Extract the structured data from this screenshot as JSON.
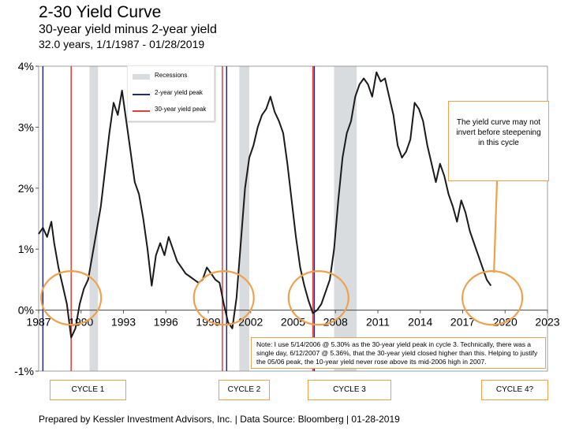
{
  "header": {
    "title": "2-30 Yield Curve",
    "subtitle": "30-year yield minus 2-year yield",
    "range": "32.0 years, 1/1/1987 - 01/28/2019"
  },
  "legend": {
    "recessions": "Recessions",
    "two_year_peak": "2-year yield peak",
    "thirty_year_peak": "30-year yield peak"
  },
  "callout": "The yield curve may not invert before steepening in this cycle",
  "note": "Note: I use 5/14/2006 @ 5.30% as the 30-year yield peak in cycle 3. Technically, there was a single day, 6/12/2007 @ 5.36%, that the 30-year yield closed higher than this. Helping to justify the 05/06 peak, the 10-year yield never rose above its mid-2006 high in 2007.",
  "cycles": [
    "CYCLE 1",
    "CYCLE 2",
    "CYCLE 3",
    "CYCLE 4?"
  ],
  "footer": "Prepared by Kessler Investment Advisors, Inc. | Data Source: Bloomberg | 01-28-2019",
  "colors": {
    "line": "#1a1a1a",
    "two_year": "#1f2a80",
    "thirty_year": "#e0403a",
    "recession": "#d9dcdf",
    "highlight": "#f0a04b"
  },
  "chart_data": {
    "type": "line",
    "title": "2-30 Yield Curve",
    "ylabel": "",
    "xlabel": "",
    "ylim": [
      -1,
      4
    ],
    "xlim": [
      1987,
      2023
    ],
    "y_ticks": [
      "-1%",
      "0%",
      "1%",
      "2%",
      "3%",
      "4%"
    ],
    "x_ticks": [
      "1987",
      "1990",
      "1993",
      "1996",
      "1999",
      "2002",
      "2005",
      "2008",
      "2011",
      "2014",
      "2017",
      "2020",
      "2023"
    ],
    "grid": false,
    "legend_position": "top-left",
    "recessions": [
      [
        1990.6,
        1991.2
      ],
      [
        2001.2,
        2001.9
      ],
      [
        2007.9,
        2009.5
      ]
    ],
    "two_year_peaks": [
      1987.3,
      2000.3,
      2006.5
    ],
    "thirty_year_peaks": [
      1989.3,
      2000.0,
      2006.4
    ],
    "cycle_circles": [
      {
        "label": "CYCLE 1",
        "center": [
          1989.3,
          0.2
        ]
      },
      {
        "label": "CYCLE 2",
        "center": [
          2000.1,
          0.2
        ]
      },
      {
        "label": "CYCLE 3",
        "center": [
          2006.8,
          0.2
        ]
      },
      {
        "label": "CYCLE 4?",
        "center": [
          2019.1,
          0.2
        ]
      }
    ],
    "series": [
      {
        "name": "30-year yield minus 2-year yield",
        "x": [
          1987.0,
          1987.3,
          1987.6,
          1987.9,
          1988.1,
          1988.4,
          1988.7,
          1989.0,
          1989.3,
          1989.6,
          1989.9,
          1990.2,
          1990.5,
          1990.8,
          1991.1,
          1991.4,
          1991.7,
          1992.0,
          1992.3,
          1992.6,
          1992.9,
          1993.2,
          1993.5,
          1993.8,
          1994.1,
          1994.4,
          1994.7,
          1995.0,
          1995.3,
          1995.6,
          1995.9,
          1996.2,
          1996.5,
          1996.8,
          1997.1,
          1997.4,
          1997.7,
          1998.0,
          1998.3,
          1998.6,
          1998.9,
          1999.2,
          1999.5,
          1999.8,
          2000.1,
          2000.4,
          2000.7,
          2001.0,
          2001.3,
          2001.6,
          2001.9,
          2002.2,
          2002.5,
          2002.8,
          2003.1,
          2003.4,
          2003.7,
          2004.0,
          2004.3,
          2004.6,
          2004.9,
          2005.2,
          2005.5,
          2005.8,
          2006.1,
          2006.4,
          2006.7,
          2007.0,
          2007.3,
          2007.6,
          2007.9,
          2008.2,
          2008.5,
          2008.8,
          2009.1,
          2009.4,
          2009.7,
          2010.0,
          2010.3,
          2010.6,
          2010.9,
          2011.2,
          2011.5,
          2011.8,
          2012.1,
          2012.4,
          2012.7,
          2013.0,
          2013.3,
          2013.6,
          2013.9,
          2014.2,
          2014.5,
          2014.8,
          2015.1,
          2015.4,
          2015.7,
          2016.0,
          2016.3,
          2016.6,
          2016.9,
          2017.2,
          2017.5,
          2017.8,
          2018.1,
          2018.4,
          2018.7,
          2019.0
        ],
        "y": [
          1.25,
          1.35,
          1.2,
          1.45,
          1.1,
          0.7,
          0.4,
          0.1,
          -0.45,
          -0.3,
          0.1,
          0.35,
          0.5,
          0.9,
          1.3,
          1.7,
          2.3,
          2.9,
          3.4,
          3.2,
          3.6,
          3.1,
          2.6,
          2.1,
          1.9,
          1.5,
          1.0,
          0.4,
          0.9,
          1.1,
          0.9,
          1.2,
          1.0,
          0.8,
          0.7,
          0.6,
          0.55,
          0.5,
          0.45,
          0.5,
          0.7,
          0.6,
          0.5,
          0.45,
          0.1,
          -0.2,
          -0.3,
          0.2,
          1.1,
          2.0,
          2.5,
          2.7,
          3.0,
          3.2,
          3.3,
          3.5,
          3.25,
          3.1,
          2.9,
          2.4,
          1.8,
          1.2,
          0.7,
          0.4,
          0.15,
          -0.05,
          0.0,
          0.1,
          0.3,
          0.5,
          1.0,
          1.8,
          2.5,
          2.9,
          3.1,
          3.5,
          3.7,
          3.8,
          3.7,
          3.5,
          3.9,
          3.75,
          3.8,
          3.5,
          3.2,
          2.7,
          2.5,
          2.6,
          2.8,
          3.4,
          3.3,
          3.1,
          2.7,
          2.4,
          2.1,
          2.4,
          2.2,
          1.9,
          1.7,
          1.45,
          1.8,
          1.6,
          1.3,
          1.1,
          0.9,
          0.7,
          0.5,
          0.4
        ]
      }
    ]
  }
}
